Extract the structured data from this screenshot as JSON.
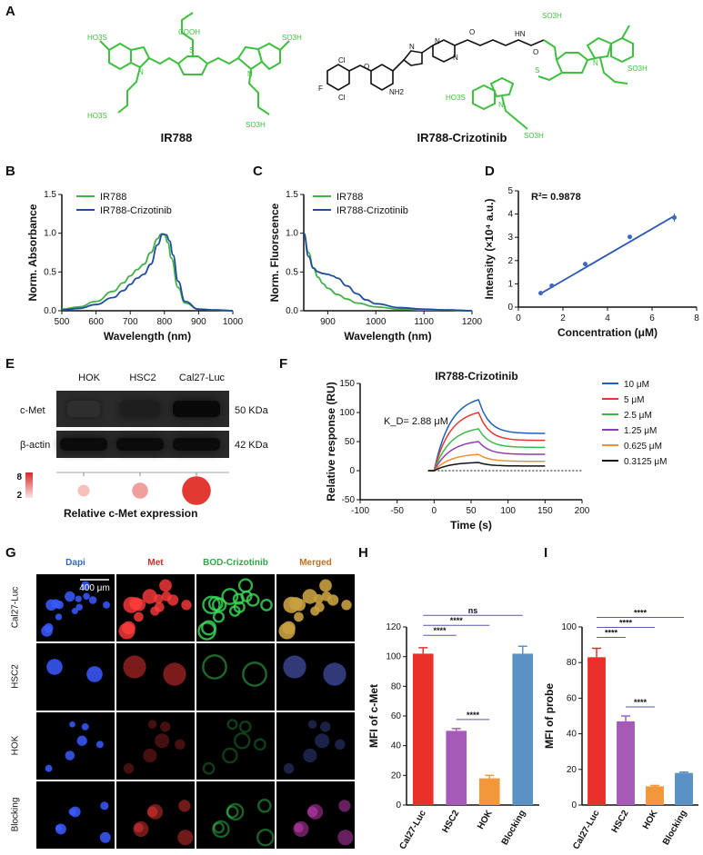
{
  "panel_letters": [
    "A",
    "B",
    "C",
    "D",
    "E",
    "F",
    "G",
    "H",
    "I"
  ],
  "panel_a": {
    "compounds": [
      {
        "name": "IR788",
        "color": "#3fbf3f"
      },
      {
        "name": "IR788-Crizotinib",
        "color": "#3fbf3f"
      }
    ],
    "atoms": [
      "HO3S",
      "COOH",
      "S",
      "N",
      "N",
      "SO3H",
      "HO3S",
      "SO3H",
      "Cl",
      "F",
      "Cl",
      "NH2",
      "O",
      "N",
      "N",
      "N",
      "O",
      "HN",
      "O",
      "SO3H",
      "SO3H",
      "S",
      "N",
      "N",
      "HO3S",
      "SO3H"
    ]
  },
  "chart_data": [
    {
      "panel": "B",
      "type": "line",
      "xlabel": "Wavelength (nm)",
      "ylabel": "Norm. Absorbance",
      "xlim": [
        500,
        1000
      ],
      "ylim": [
        0,
        1.5
      ],
      "xticks": [
        "500",
        "600",
        "700",
        "800",
        "900",
        "1000"
      ],
      "yticks": [
        "0.0",
        "0.5",
        "1.0",
        "1.5"
      ],
      "legend_placement": "top-left",
      "series": [
        {
          "name": "IR788",
          "color": "#43b04a",
          "x": [
            500,
            550,
            600,
            650,
            680,
            700,
            720,
            740,
            760,
            780,
            790,
            800,
            810,
            820,
            840,
            860,
            900,
            950,
            1000
          ],
          "y": [
            0.02,
            0.05,
            0.12,
            0.25,
            0.36,
            0.45,
            0.53,
            0.6,
            0.75,
            0.93,
            0.99,
            0.98,
            0.88,
            0.68,
            0.3,
            0.1,
            0.02,
            0.01,
            0.0
          ]
        },
        {
          "name": "IR788-Crizotinib",
          "color": "#1f4e9b",
          "x": [
            500,
            550,
            600,
            650,
            680,
            700,
            720,
            740,
            760,
            780,
            795,
            805,
            815,
            825,
            840,
            860,
            900,
            950,
            1000
          ],
          "y": [
            0.01,
            0.03,
            0.08,
            0.17,
            0.26,
            0.34,
            0.42,
            0.47,
            0.6,
            0.85,
            0.99,
            0.98,
            0.9,
            0.72,
            0.38,
            0.12,
            0.02,
            0.01,
            0.0
          ]
        }
      ]
    },
    {
      "panel": "C",
      "type": "line",
      "xlabel": "Wavelength (nm)",
      "ylabel": "Norm. Fluorscence",
      "xlim": [
        850,
        1200
      ],
      "ylim": [
        0,
        1.5
      ],
      "xticks": [
        "900",
        "1000",
        "1100",
        "1200"
      ],
      "yticks": [
        "0.0",
        "0.5",
        "1.0",
        "1.5"
      ],
      "legend_placement": "top-right",
      "series": [
        {
          "name": "IR788",
          "color": "#43b04a",
          "x": [
            850,
            860,
            870,
            880,
            890,
            900,
            920,
            940,
            960,
            1000,
            1050,
            1100,
            1150,
            1200
          ],
          "y": [
            1.0,
            0.75,
            0.55,
            0.43,
            0.35,
            0.29,
            0.21,
            0.15,
            0.1,
            0.05,
            0.02,
            0.01,
            0.01,
            0.0
          ]
        },
        {
          "name": "IR788-Crizotinib",
          "color": "#1f4e9b",
          "x": [
            850,
            860,
            870,
            880,
            890,
            900,
            910,
            920,
            940,
            960,
            980,
            1000,
            1050,
            1100,
            1150,
            1200
          ],
          "y": [
            1.0,
            0.7,
            0.55,
            0.5,
            0.48,
            0.47,
            0.45,
            0.42,
            0.32,
            0.22,
            0.14,
            0.09,
            0.04,
            0.02,
            0.01,
            0.0
          ]
        }
      ]
    },
    {
      "panel": "D",
      "type": "scatter",
      "xlabel": "Concentration (μM)",
      "ylabel": "Intensity (×10⁴ a.u.)",
      "annotation": "R²= 0.9878",
      "xlim": [
        0,
        8
      ],
      "ylim": [
        0,
        5
      ],
      "xticks": [
        "0",
        "2",
        "4",
        "6",
        "8"
      ],
      "yticks": [
        "0",
        "1",
        "2",
        "3",
        "4",
        "5"
      ],
      "color": "#3a68c5",
      "points": [
        {
          "x": 1,
          "y": 0.6,
          "err": 0.06
        },
        {
          "x": 1.5,
          "y": 0.92,
          "err": 0.05
        },
        {
          "x": 3,
          "y": 1.85,
          "err": 0.04
        },
        {
          "x": 5,
          "y": 3.02,
          "err": 0.04
        },
        {
          "x": 7,
          "y": 3.85,
          "err": 0.18
        }
      ],
      "fit": {
        "x": [
          1,
          7
        ],
        "y": [
          0.58,
          3.92
        ]
      }
    },
    {
      "panel": "F",
      "type": "line",
      "title": "IR788-Crizotinib",
      "annotation": "K_D= 2.88 μM",
      "xlabel": "Time (s)",
      "ylabel": "Relative response (RU)",
      "xlim": [
        -100,
        200
      ],
      "ylim": [
        -50,
        150
      ],
      "xticks": [
        "-100",
        "-50",
        "0",
        "50",
        "100",
        "150",
        "200"
      ],
      "yticks": [
        "-50",
        "0",
        "50",
        "100",
        "150"
      ],
      "legend_placement": "right",
      "series": [
        {
          "name": "10 μM",
          "color": "#2060b8",
          "peak": 122,
          "end": 64
        },
        {
          "name": "5 μM",
          "color": "#e03a2f",
          "peak": 100,
          "end": 52
        },
        {
          "name": "2.5 μM",
          "color": "#3fb84a",
          "peak": 72,
          "end": 40
        },
        {
          "name": "1.25 μM",
          "color": "#8d3db0",
          "peak": 50,
          "end": 28
        },
        {
          "name": "0.625 μM",
          "color": "#f0902a",
          "peak": 28,
          "end": 16
        },
        {
          "name": "0.3125 μM",
          "color": "#111111",
          "peak": 14,
          "end": 8
        }
      ]
    },
    {
      "panel": "H",
      "type": "bar",
      "ylabel": "MFI of c-Met",
      "ylim": [
        0,
        120
      ],
      "yticks": [
        "0",
        "20",
        "40",
        "60",
        "80",
        "100",
        "120"
      ],
      "categories": [
        "Cal27-Luc",
        "HSC2",
        "HOK",
        "Blocking"
      ],
      "values": [
        102,
        50,
        18,
        102
      ],
      "errors": [
        4,
        1.5,
        2,
        5
      ],
      "colors": [
        "#e8312b",
        "#a45ab6",
        "#f2973a",
        "#5a92c6"
      ],
      "significance": [
        {
          "from": 0,
          "to": 3,
          "label": "ns"
        },
        {
          "from": 0,
          "to": 2,
          "label": "****"
        },
        {
          "from": 0,
          "to": 1,
          "label": "****"
        },
        {
          "from": 1,
          "to": 2,
          "label": "****"
        }
      ]
    },
    {
      "panel": "I",
      "type": "bar",
      "ylabel": "MFI of probe",
      "ylim": [
        0,
        100
      ],
      "yticks": [
        "0",
        "20",
        "40",
        "60",
        "80",
        "100"
      ],
      "categories": [
        "Cal27-Luc",
        "HSC2",
        "HOK",
        "Blocking"
      ],
      "values": [
        83,
        47,
        10.5,
        18
      ],
      "errors": [
        5,
        3,
        0.5,
        0.5
      ],
      "colors": [
        "#e8312b",
        "#a45ab6",
        "#f2973a",
        "#5a92c6"
      ],
      "significance": [
        {
          "from": 0,
          "to": 3,
          "label": "****"
        },
        {
          "from": 0,
          "to": 2,
          "label": "****"
        },
        {
          "from": 0,
          "to": 1,
          "label": "****"
        },
        {
          "from": 1,
          "to": 2,
          "label": "****"
        }
      ]
    }
  ],
  "panel_e": {
    "lanes": [
      "HOK",
      "HSC2",
      "Cal27-Luc"
    ],
    "rows": [
      {
        "label": "c-Met",
        "size": "50 KDa",
        "intensity": [
          0.25,
          0.55,
          0.95
        ]
      },
      {
        "label": "β-actin",
        "size": "42 KDa",
        "intensity": [
          0.9,
          0.9,
          0.9
        ]
      }
    ],
    "scale_max": "8",
    "scale_min": "2",
    "dot_values": [
      2.2,
      3.6,
      8
    ],
    "dot_color": "#e23a33",
    "caption": "Relative c-Met expression"
  },
  "panel_g": {
    "columns": [
      {
        "label": "Dapi",
        "color": "#3366cc"
      },
      {
        "label": "Met",
        "color": "#d92b2b"
      },
      {
        "label": "BOD-Crizotinib",
        "color": "#2fa84a"
      },
      {
        "label": "Merged",
        "color": "#c07020"
      }
    ],
    "rows": [
      "Cal27-Luc",
      "HSC2",
      "HOK",
      "Blocking"
    ],
    "scale_bar": "400 μm"
  }
}
